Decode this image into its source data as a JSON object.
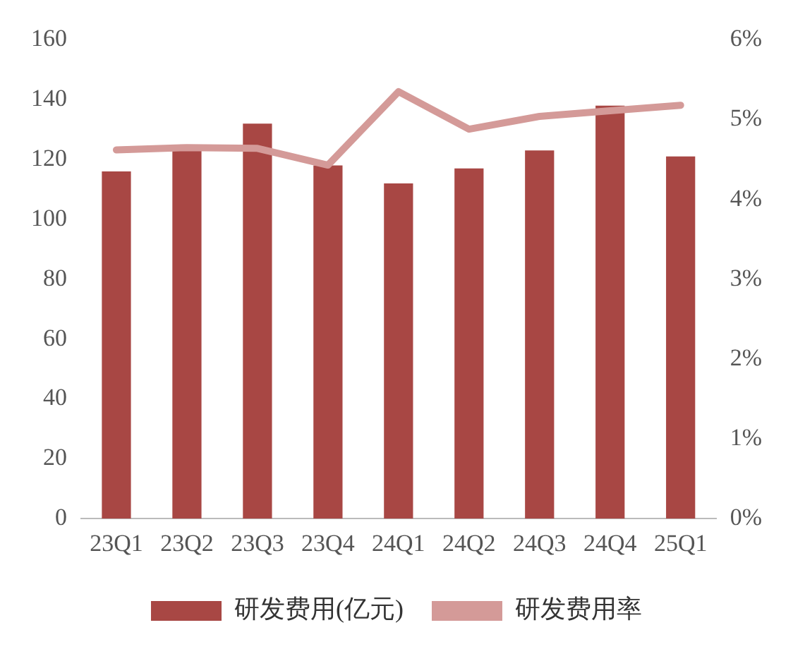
{
  "chart_data": {
    "type": "bar",
    "categories": [
      "23Q1",
      "23Q2",
      "23Q3",
      "23Q4",
      "24Q1",
      "24Q2",
      "24Q3",
      "24Q4",
      "25Q1"
    ],
    "series": [
      {
        "name": "研发费用(亿元)",
        "color": "#a84744",
        "values": [
          116,
          123,
          132,
          118,
          112,
          117,
          123,
          138,
          121
        ]
      },
      {
        "name": "研发费用率",
        "type": "line",
        "axis": "y2",
        "color": "#d49a98",
        "values": [
          4.62,
          4.65,
          4.64,
          4.43,
          5.35,
          4.88,
          5.04,
          5.11,
          5.18
        ]
      }
    ],
    "ylim": [
      0,
      160
    ],
    "yticks": [
      0,
      20,
      40,
      60,
      80,
      100,
      120,
      140,
      160
    ],
    "y2lim": [
      0,
      6
    ],
    "y2ticks": [
      {
        "value": 0,
        "label": "0%"
      },
      {
        "value": 1,
        "label": "1%"
      },
      {
        "value": 2,
        "label": "2%"
      },
      {
        "value": 3,
        "label": "3%"
      },
      {
        "value": 4,
        "label": "4%"
      },
      {
        "value": 5,
        "label": "5%"
      },
      {
        "value": 6,
        "label": "6%"
      }
    ],
    "grid": false,
    "legend": "bottom",
    "marker": "none"
  }
}
